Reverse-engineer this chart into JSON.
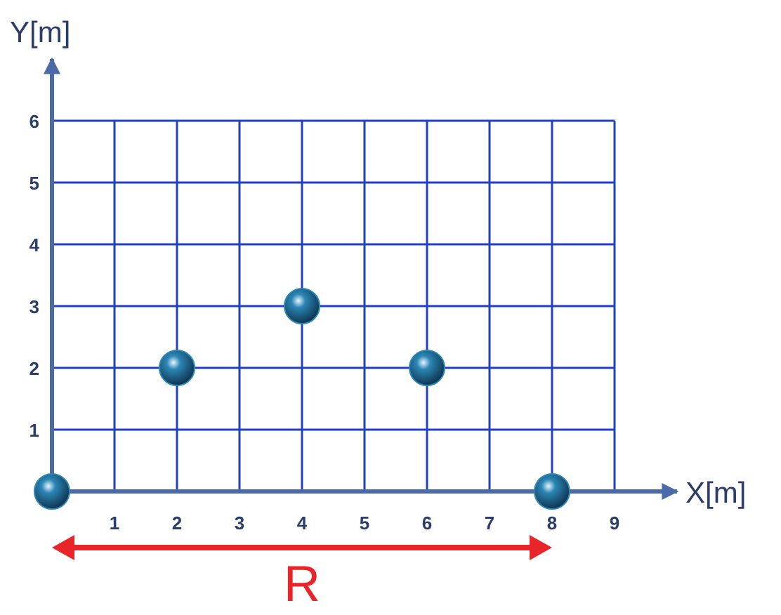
{
  "chart_data": {
    "type": "scatter",
    "xlabel": "X[m]",
    "ylabel": "Y[m]",
    "x": [
      0,
      2,
      4,
      6,
      8
    ],
    "series": [
      {
        "color": "#2b86b5",
        "values": [
          0,
          2,
          3,
          2,
          0
        ]
      }
    ],
    "xlim": [
      0,
      10
    ],
    "ylim": [
      0,
      7
    ],
    "xticks": [
      1,
      2,
      3,
      4,
      5,
      6,
      7,
      8,
      9
    ],
    "yticks": [
      1,
      2,
      3,
      4,
      5,
      6
    ],
    "grid": true,
    "marker": "circle",
    "annotations": [
      "R"
    ]
  }
}
